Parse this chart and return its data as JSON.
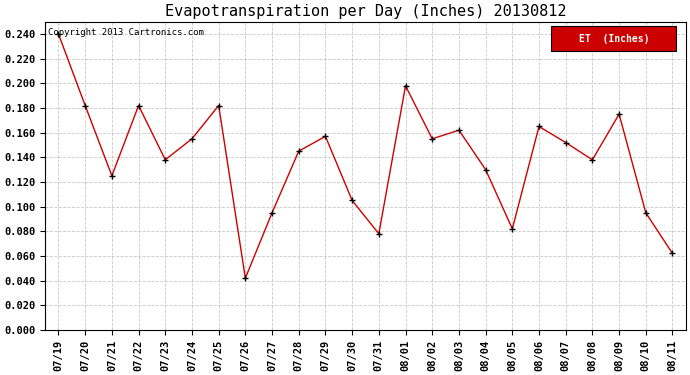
{
  "title": "Evapotranspiration per Day (Inches) 20130812",
  "copyright_text": "Copyright 2013 Cartronics.com",
  "legend_label": "ET  (Inches)",
  "legend_bg": "#cc0000",
  "legend_text_color": "#ffffff",
  "x_labels": [
    "07/19",
    "07/20",
    "07/21",
    "07/22",
    "07/23",
    "07/24",
    "07/25",
    "07/26",
    "07/27",
    "07/28",
    "07/29",
    "07/30",
    "07/31",
    "08/01",
    "08/02",
    "08/03",
    "08/04",
    "08/05",
    "08/06",
    "08/07",
    "08/08",
    "08/09",
    "08/10",
    "08/11"
  ],
  "y_values": [
    0.24,
    0.182,
    0.125,
    0.182,
    0.138,
    0.155,
    0.182,
    0.042,
    0.095,
    0.145,
    0.157,
    0.105,
    0.078,
    0.198,
    0.155,
    0.162,
    0.13,
    0.082,
    0.165,
    0.152,
    0.138,
    0.175,
    0.095,
    0.062
  ],
  "line_color": "#cc0000",
  "marker_color": "#000000",
  "bg_color": "#ffffff",
  "plot_bg_color": "#ffffff",
  "grid_color": "#bbbbbb",
  "ylim": [
    0.0,
    0.25
  ],
  "yticks": [
    0.0,
    0.02,
    0.04,
    0.06,
    0.08,
    0.1,
    0.12,
    0.14,
    0.16,
    0.18,
    0.2,
    0.22,
    0.24
  ],
  "title_fontsize": 11,
  "tick_fontsize": 7.5,
  "copyright_fontsize": 6.5
}
